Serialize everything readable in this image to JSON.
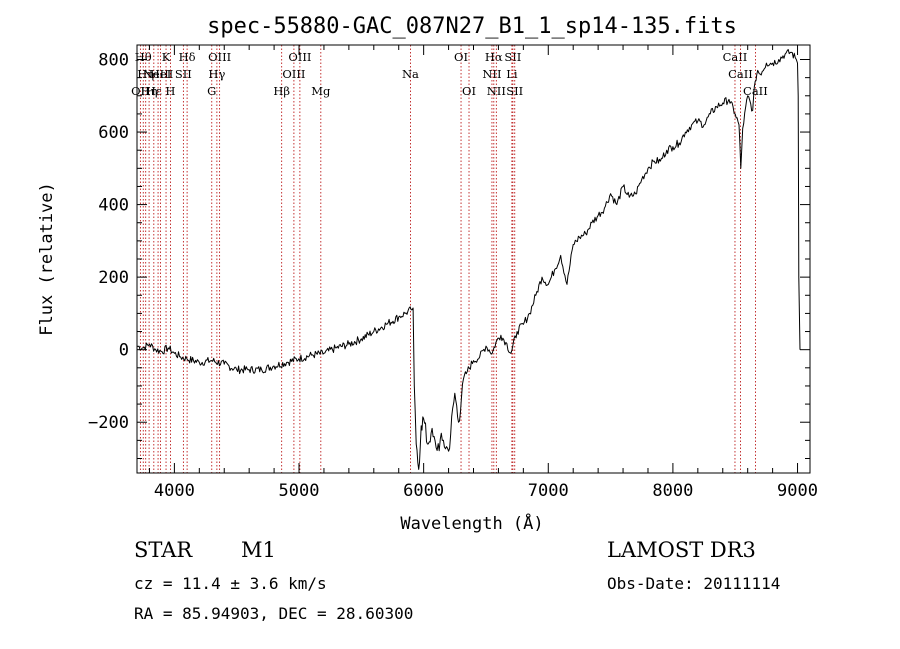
{
  "chart_data": {
    "type": "line",
    "title": "spec-55880-GAC_087N27_B1_1_sp14-135.fits",
    "xlabel": "Wavelength (Å)",
    "ylabel": "Flux (relative)",
    "xlim": [
      3700,
      9100
    ],
    "ylim": [
      -340,
      840
    ],
    "xticks": [
      4000,
      5000,
      6000,
      7000,
      8000,
      9000
    ],
    "yticks": [
      -200,
      0,
      200,
      400,
      600,
      800
    ],
    "series": [
      {
        "name": "flux",
        "x": [
          3700,
          3750,
          3800,
          3850,
          3900,
          3950,
          4000,
          4050,
          4100,
          4200,
          4300,
          4400,
          4500,
          4600,
          4700,
          4800,
          4900,
          5000,
          5100,
          5200,
          5300,
          5400,
          5500,
          5600,
          5700,
          5800,
          5850,
          5900,
          5915,
          5925,
          5940,
          5960,
          5980,
          6000,
          6030,
          6060,
          6100,
          6150,
          6200,
          6250,
          6280,
          6320,
          6350,
          6400,
          6450,
          6500,
          6550,
          6580,
          6620,
          6660,
          6700,
          6750,
          6800,
          6850,
          6900,
          6950,
          7000,
          7050,
          7100,
          7150,
          7200,
          7250,
          7300,
          7350,
          7400,
          7450,
          7500,
          7550,
          7600,
          7650,
          7700,
          7750,
          7800,
          7850,
          7900,
          7950,
          8000,
          8050,
          8100,
          8150,
          8200,
          8250,
          8300,
          8350,
          8400,
          8450,
          8500,
          8530,
          8545,
          8560,
          8600,
          8640,
          8660,
          8680,
          8700,
          8750,
          8800,
          8850,
          8900,
          8950,
          8990,
          9000,
          9005,
          9010,
          9020
        ],
        "y": [
          10,
          5,
          15,
          0,
          -5,
          5,
          -10,
          -20,
          -25,
          -35,
          -30,
          -40,
          -55,
          -55,
          -55,
          -45,
          -35,
          -25,
          -15,
          -10,
          5,
          15,
          30,
          50,
          70,
          90,
          100,
          110,
          115,
          -100,
          -260,
          -330,
          -210,
          -190,
          -260,
          -230,
          -270,
          -250,
          -280,
          -120,
          -200,
          -80,
          -60,
          -30,
          -20,
          10,
          -10,
          20,
          40,
          20,
          -10,
          50,
          70,
          100,
          150,
          200,
          180,
          220,
          260,
          180,
          290,
          310,
          320,
          350,
          370,
          390,
          430,
          400,
          450,
          420,
          430,
          470,
          500,
          520,
          520,
          550,
          560,
          570,
          600,
          620,
          630,
          620,
          650,
          670,
          680,
          690,
          650,
          620,
          500,
          610,
          700,
          660,
          740,
          770,
          760,
          790,
          790,
          800,
          815,
          820,
          800,
          790,
          700,
          200,
          0
        ]
      }
    ],
    "spectral_lines": [
      {
        "wl": 3727,
        "label": "OII",
        "row": 2
      },
      {
        "wl": 3750,
        "label": "Hθ",
        "row": 0
      },
      {
        "wl": 3770,
        "label": "Hη",
        "row": 1
      },
      {
        "wl": 3797,
        "label": "Hη",
        "row": 2
      },
      {
        "wl": 3835,
        "label": "Hε",
        "row": 2
      },
      {
        "wl": 3869,
        "label": "NeIII",
        "row": 1
      },
      {
        "wl": 3889,
        "label": "HeI",
        "row": 1
      },
      {
        "wl": 3933,
        "label": "K",
        "row": 0
      },
      {
        "wl": 3968,
        "label": "H",
        "row": 2
      },
      {
        "wl": 4072,
        "label": "SII",
        "row": 1
      },
      {
        "wl": 4102,
        "label": "Hδ",
        "row": 0
      },
      {
        "wl": 4300,
        "label": "G",
        "row": 2
      },
      {
        "wl": 4341,
        "label": "Hγ",
        "row": 1
      },
      {
        "wl": 4363,
        "label": "OIII",
        "row": 0
      },
      {
        "wl": 4861,
        "label": "Hβ",
        "row": 2
      },
      {
        "wl": 4959,
        "label": "OIII",
        "row": 1
      },
      {
        "wl": 5007,
        "label": "OIII",
        "row": 0
      },
      {
        "wl": 5175,
        "label": "Mg",
        "row": 2
      },
      {
        "wl": 5894,
        "label": "Na",
        "row": 1
      },
      {
        "wl": 6300,
        "label": "OI",
        "row": 0
      },
      {
        "wl": 6364,
        "label": "OI",
        "row": 2
      },
      {
        "wl": 6548,
        "label": "NII",
        "row": 1
      },
      {
        "wl": 6563,
        "label": "Hα",
        "row": 0
      },
      {
        "wl": 6583,
        "label": "NII",
        "row": 2
      },
      {
        "wl": 6708,
        "label": "Li",
        "row": 1
      },
      {
        "wl": 6716,
        "label": "SII",
        "row": 0
      },
      {
        "wl": 6731,
        "label": "SII",
        "row": 2
      },
      {
        "wl": 8498,
        "label": "CaII",
        "row": 0
      },
      {
        "wl": 8542,
        "label": "CaII",
        "row": 1
      },
      {
        "wl": 8662,
        "label": "CaII",
        "row": 2
      }
    ]
  },
  "info": {
    "class": "STAR",
    "subclass": "M1",
    "survey": "LAMOST DR3",
    "cz": "cz = 11.4 ± 3.6 km/s",
    "obs_date": "Obs-Date: 20111114",
    "radec": "RA =  85.94903, DEC =  28.60300"
  },
  "colors": {
    "line_marker": "#b40000",
    "spectrum": "#000000"
  }
}
